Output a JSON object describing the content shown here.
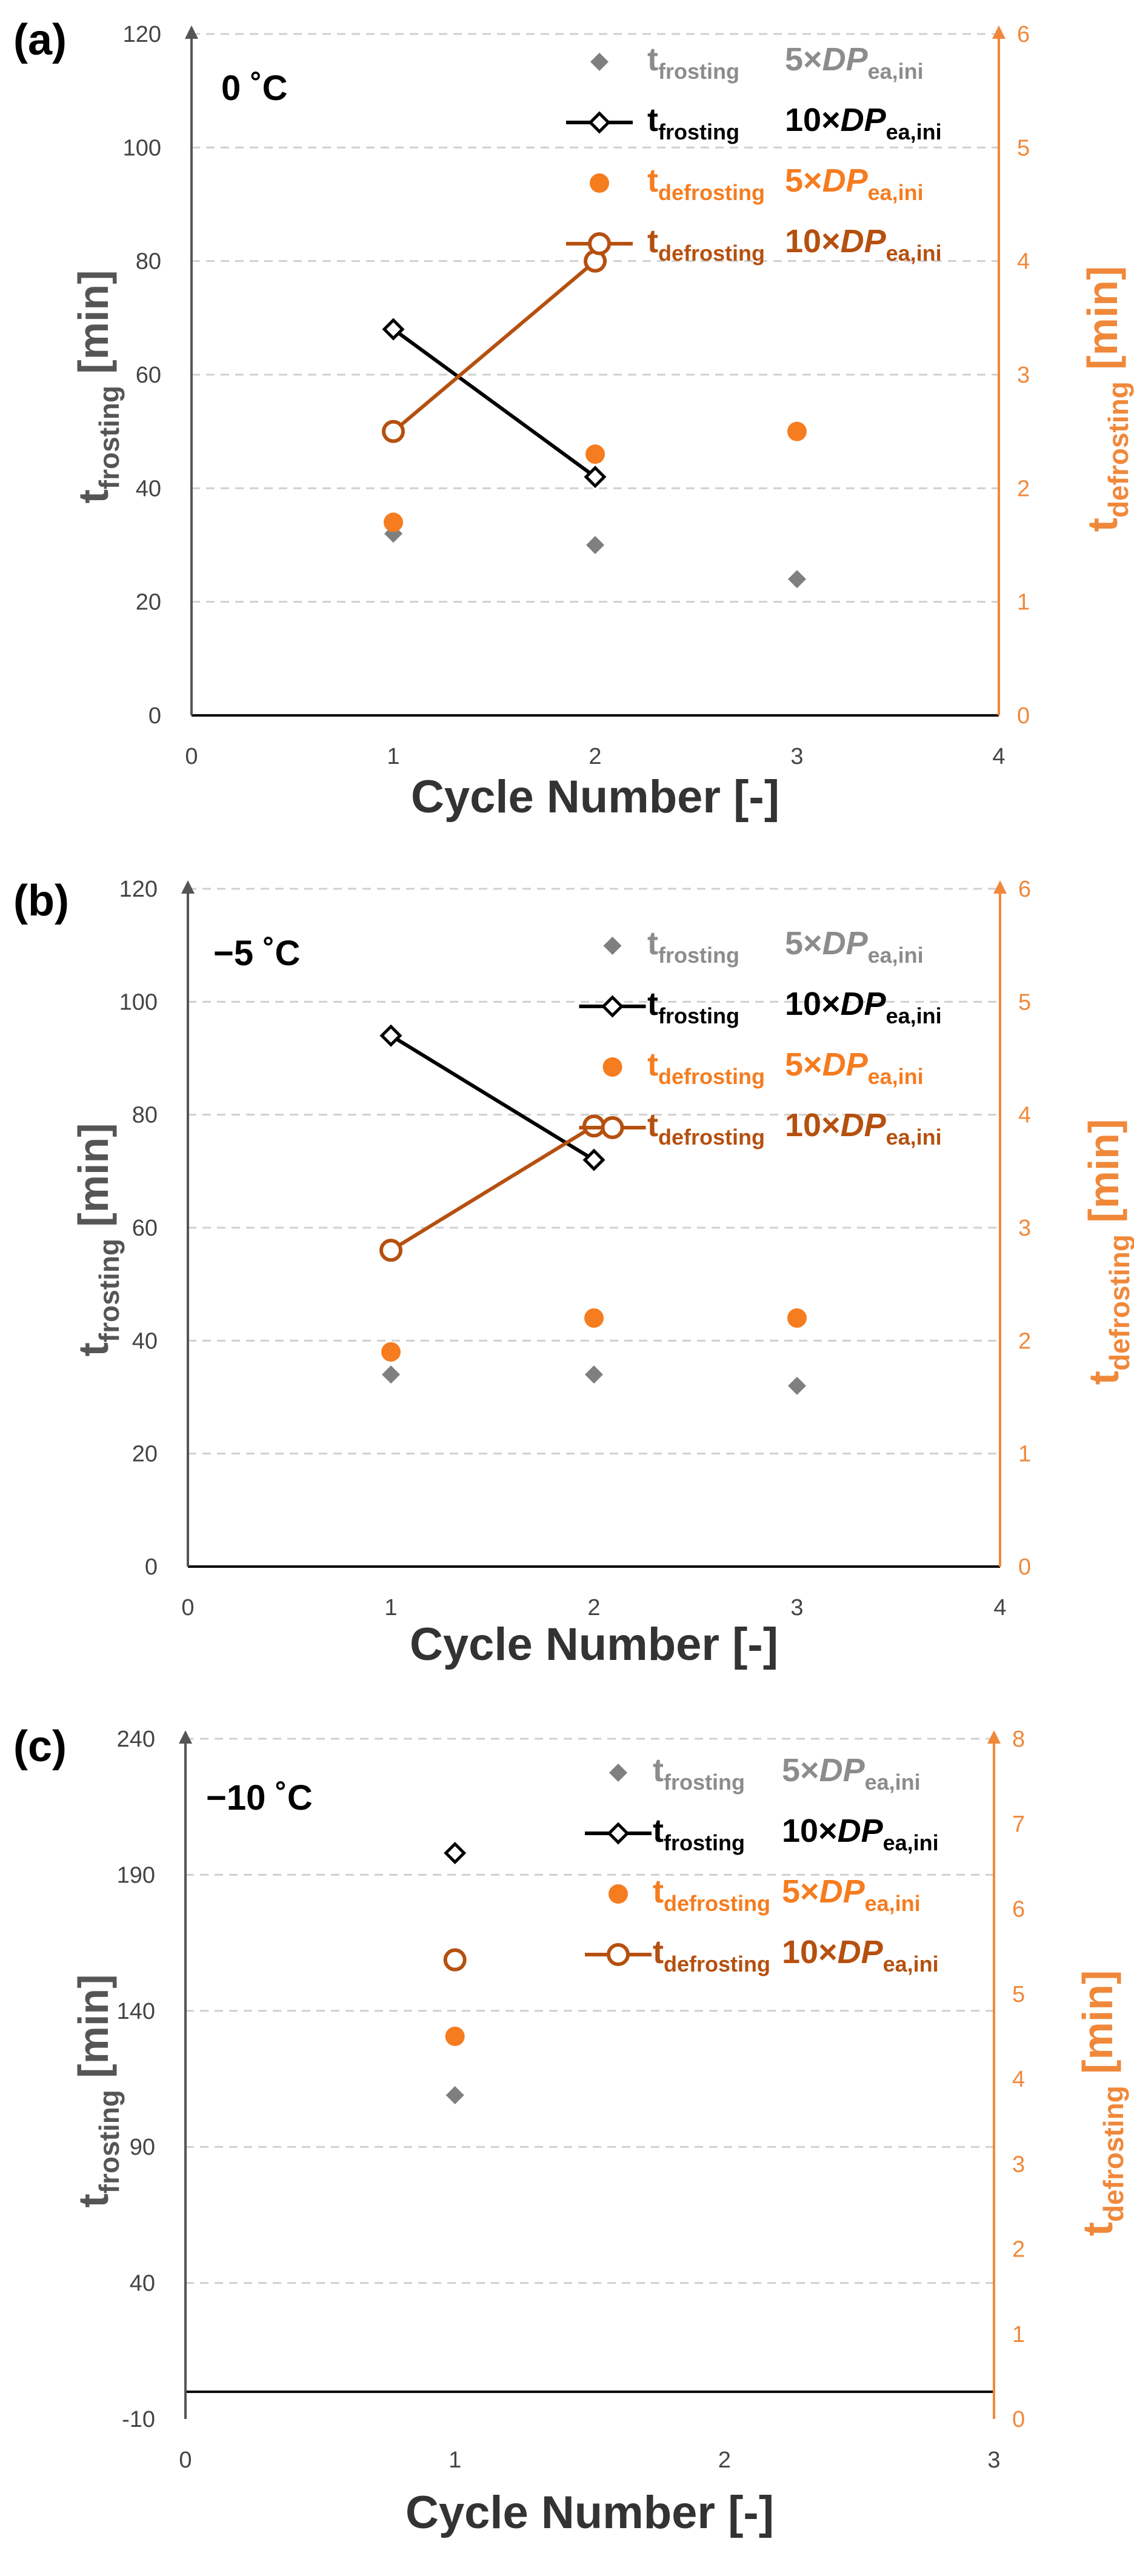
{
  "chart_data": [
    {
      "type": "scatter",
      "panel_label": "(a)",
      "annotation": "0 ˚C",
      "xlabel": "Cycle Number [-]",
      "ylabel_main": "t",
      "ylabel_sub": "frosting",
      "ylabel_unit": " [min]",
      "y2label_main": "t",
      "y2label_sub": "defrosting",
      "y2label_unit": " [min]",
      "xlim": [
        0,
        4
      ],
      "xticks": [
        0,
        1,
        2,
        3,
        4
      ],
      "ylim": [
        0,
        120
      ],
      "yticks": [
        0,
        20,
        40,
        60,
        80,
        100,
        120
      ],
      "y2lim": [
        0,
        6
      ],
      "y2ticks": [
        0,
        1,
        2,
        3,
        4,
        5,
        6
      ],
      "grid": true,
      "series": [
        {
          "key": "frost5",
          "axis": "left",
          "x": [
            1,
            2,
            3
          ],
          "y": [
            32,
            30,
            24
          ]
        },
        {
          "key": "frost10",
          "axis": "left",
          "x": [
            1,
            2
          ],
          "y": [
            68,
            42
          ]
        },
        {
          "key": "defrost5",
          "axis": "right",
          "x": [
            1,
            2,
            3
          ],
          "y": [
            1.7,
            2.3,
            2.5
          ]
        },
        {
          "key": "defrost10",
          "axis": "right",
          "x": [
            1,
            2
          ],
          "y": [
            2.5,
            4.0
          ]
        }
      ]
    },
    {
      "type": "scatter",
      "panel_label": "(b)",
      "annotation": "−5 ˚C",
      "xlabel": "Cycle Number [-]",
      "ylabel_main": "t",
      "ylabel_sub": "frosting",
      "ylabel_unit": " [min]",
      "y2label_main": "t",
      "y2label_sub": "defrosting",
      "y2label_unit": " [min]",
      "xlim": [
        0,
        4
      ],
      "xticks": [
        0,
        1,
        2,
        3,
        4
      ],
      "ylim": [
        0,
        120
      ],
      "yticks": [
        0,
        20,
        40,
        60,
        80,
        100,
        120
      ],
      "y2lim": [
        0,
        6
      ],
      "y2ticks": [
        0,
        1,
        2,
        3,
        4,
        5,
        6
      ],
      "grid": true,
      "series": [
        {
          "key": "frost5",
          "axis": "left",
          "x": [
            1,
            2,
            3
          ],
          "y": [
            34,
            34,
            32
          ]
        },
        {
          "key": "frost10",
          "axis": "left",
          "x": [
            1,
            2
          ],
          "y": [
            94,
            72
          ]
        },
        {
          "key": "defrost5",
          "axis": "right",
          "x": [
            1,
            2,
            3
          ],
          "y": [
            1.9,
            2.2,
            2.2
          ]
        },
        {
          "key": "defrost10",
          "axis": "right",
          "x": [
            1,
            2
          ],
          "y": [
            2.8,
            3.9
          ]
        }
      ]
    },
    {
      "type": "scatter",
      "panel_label": "(c)",
      "annotation": "−10 ˚C",
      "xlabel": "Cycle Number [-]",
      "ylabel_main": "t",
      "ylabel_sub": "frosting",
      "ylabel_unit": " [min]",
      "y2label_main": "t",
      "y2label_sub": "defrosting",
      "y2label_unit": " [min]",
      "xlim": [
        0,
        3
      ],
      "xticks": [
        0,
        1,
        2,
        3
      ],
      "ylim": [
        -10,
        240
      ],
      "yticks": [
        -10,
        40,
        90,
        140,
        190,
        240
      ],
      "y2lim": [
        0,
        8
      ],
      "y2ticks": [
        0,
        1,
        2,
        3,
        4,
        5,
        6,
        7,
        8
      ],
      "grid": true,
      "baseline_y": 0,
      "series": [
        {
          "key": "frost5",
          "axis": "left",
          "x": [
            1
          ],
          "y": [
            109
          ]
        },
        {
          "key": "frost10",
          "axis": "left",
          "x": [
            1
          ],
          "y": [
            198
          ]
        },
        {
          "key": "defrost5",
          "axis": "right",
          "x": [
            1
          ],
          "y": [
            4.5
          ]
        },
        {
          "key": "defrost10",
          "axis": "right",
          "x": [
            1
          ],
          "y": [
            5.4
          ]
        }
      ]
    }
  ],
  "legend": [
    {
      "key": "frost5",
      "name_main": "t",
      "name_sub": "frosting",
      "cond_pre": "5×",
      "cond_main": "DP",
      "cond_sub": "ea,ini",
      "color": "#7f7f7f",
      "text_color": "#8c8c8c",
      "marker": "diamond-filled",
      "line": false
    },
    {
      "key": "frost10",
      "name_main": "t",
      "name_sub": "frosting",
      "cond_pre": "10×",
      "cond_main": "DP",
      "cond_sub": "ea,ini",
      "color": "#000000",
      "text_color": "#000000",
      "marker": "diamond-open",
      "line": true
    },
    {
      "key": "defrost5",
      "name_main": "t",
      "name_sub": "defrosting",
      "cond_pre": "5×",
      "cond_main": "DP",
      "cond_sub": "ea,ini",
      "color": "#f57c1f",
      "text_color": "#f57c1f",
      "marker": "circle-filled",
      "line": false
    },
    {
      "key": "defrost10",
      "name_main": "t",
      "name_sub": "defrosting",
      "cond_pre": "10×",
      "cond_main": "DP",
      "cond_sub": "ea,ini",
      "color": "#b5500f",
      "text_color": "#b5500f",
      "marker": "circle-open",
      "line": true
    }
  ],
  "colors": {
    "left_axis": "#555555",
    "right_axis": "#f0883a",
    "grid": "#d0d0d0",
    "x_axis": "#000000"
  }
}
